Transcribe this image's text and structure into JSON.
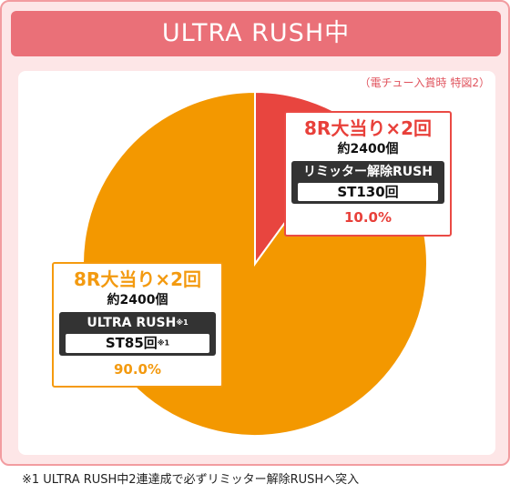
{
  "title": "ULTRA RUSH中",
  "note": "（電チュー入賞時 特図2）",
  "chart_data": {
    "type": "pie",
    "slices": [
      {
        "value": 10.0,
        "color": "#e8453f"
      },
      {
        "value": 90.0,
        "color": "#f39800"
      }
    ]
  },
  "labels": {
    "red": {
      "headline": "8R大当り×2回",
      "sub": "約2400個",
      "mode": "リミッター解除RUSH",
      "st": "ST130回",
      "percent": "10.0%"
    },
    "orange": {
      "headline": "8R大当り×2回",
      "sub": "約2400個",
      "mode": "ULTRA RUSH",
      "mode_mark": "※1",
      "st": "ST85回",
      "st_mark": "※1",
      "percent": "90.0%"
    }
  },
  "footnote": "※1 ULTRA RUSH中2連達成で必ずリミッター解除RUSHへ突入"
}
